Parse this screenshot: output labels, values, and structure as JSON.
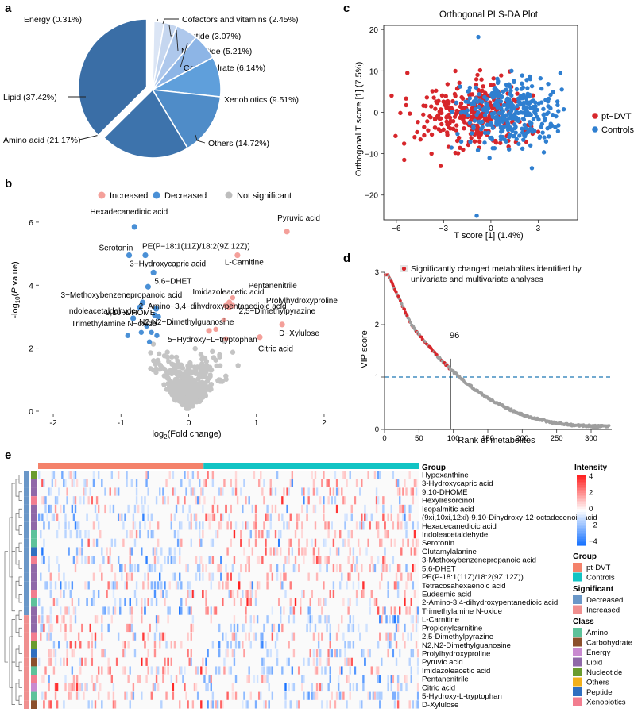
{
  "panel_labels": [
    "a",
    "b",
    "c",
    "d",
    "e"
  ],
  "chart_data": [
    {
      "panel": "a",
      "type": "pie",
      "slices": [
        {
          "label": "Energy (0.31%)",
          "value": 0.31,
          "color": "#eef2fa"
        },
        {
          "label": "Cofactors and vitamins (2.45%)",
          "value": 2.45,
          "color": "#dbe5f5"
        },
        {
          "label": "Peptide (3.07%)",
          "value": 3.07,
          "color": "#c5d6ef"
        },
        {
          "label": "Nucleotide (5.21%)",
          "value": 5.21,
          "color": "#aec8ec"
        },
        {
          "label": "Carbohydrate (6.14%)",
          "value": 6.14,
          "color": "#8db5e6"
        },
        {
          "label": "Xenobiotics (9.51%)",
          "value": 9.51,
          "color": "#5f9fdb"
        },
        {
          "label": "Others (14.72%)",
          "value": 14.72,
          "color": "#4f8cc8"
        },
        {
          "label": "Amino acid (21.17%)",
          "value": 21.17,
          "color": "#3d73ac"
        },
        {
          "label": "Lipid (37.42%)",
          "value": 37.42,
          "color": "#3a6ea6"
        }
      ]
    },
    {
      "panel": "b",
      "type": "scatter",
      "xlabel": "log2(Fold change)",
      "ylabel": "-log10(P value)",
      "xlim": [
        -2.2,
        2.2
      ],
      "ylim": [
        0,
        6.3
      ],
      "xticks": [
        "-2",
        "-1",
        "0",
        "1",
        "2"
      ],
      "yticks": [
        "0",
        "2",
        "4",
        "6"
      ],
      "legend": [
        {
          "label": "Increased",
          "color": "#f4a09a"
        },
        {
          "label": "Decreased",
          "color": "#4a90d6"
        },
        {
          "label": "Not significant",
          "color": "#bdbdbd"
        }
      ],
      "labeled_points": [
        {
          "label": "Hexadecanedioic acid",
          "x": -0.8,
          "y": 5.85,
          "group": "Decreased"
        },
        {
          "label": "Pyruvic acid",
          "x": 1.45,
          "y": 5.7,
          "group": "Increased"
        },
        {
          "label": "Serotonin",
          "x": -0.88,
          "y": 4.95,
          "group": "Decreased"
        },
        {
          "label": "PE(P−18:1(11Z)/18:2(9Z,12Z))",
          "x": -0.64,
          "y": 4.95,
          "group": "Decreased"
        },
        {
          "label": "L-Carnitine",
          "x": 0.72,
          "y": 4.95,
          "group": "Increased"
        },
        {
          "label": "3−Hydroxycapric acid",
          "x": -0.52,
          "y": 4.4,
          "group": "Decreased"
        },
        {
          "label": "5,6−DHET",
          "x": -0.6,
          "y": 3.95,
          "group": "Decreased"
        },
        {
          "label": "3−Methoxybenzenepropanoic acid",
          "x": -0.68,
          "y": 3.45,
          "group": "Decreased"
        },
        {
          "label": "Imidazoleacetic acid",
          "x": 0.55,
          "y": 3.35,
          "group": "Increased"
        },
        {
          "label": "Pentanenitrile",
          "x": 0.6,
          "y": 3.45,
          "group": "Increased"
        },
        {
          "label": "Prolylhydroxyproline",
          "x": 0.65,
          "y": 3.35,
          "group": "Increased"
        },
        {
          "label": "Indoleacetaldehyde",
          "x": -0.72,
          "y": 3.3,
          "group": "Decreased"
        },
        {
          "label": "2−Amino−3,4−dihydroxypentanedioic acid",
          "x": -0.48,
          "y": 3.25,
          "group": "Decreased"
        },
        {
          "label": "2,5−Dimethylpyrazine",
          "x": 0.6,
          "y": 3.3,
          "group": "Increased"
        },
        {
          "label": "Trimethylamine N−oxide",
          "x": -0.82,
          "y": 2.95,
          "group": "Decreased"
        },
        {
          "label": "9,10−DHOME",
          "x": -0.5,
          "y": 3.05,
          "group": "Decreased"
        },
        {
          "label": "N2,N2−Dimethylguanosine",
          "x": -0.45,
          "y": 3.0,
          "group": "Decreased"
        },
        {
          "label": "D−Xylulose",
          "x": 1.38,
          "y": 2.75,
          "group": "Increased"
        },
        {
          "label": "5−Hydroxy−L−tryptophan",
          "x": 0.3,
          "y": 2.55,
          "group": "Increased"
        },
        {
          "label": "Citric acid",
          "x": 1.05,
          "y": 2.35,
          "group": "Increased"
        }
      ]
    },
    {
      "panel": "c",
      "type": "scatter",
      "title": "Orthogonal PLS-DA Plot",
      "xlabel": "T score [1] (1.4%)",
      "ylabel": "Orthogonal T score [1] (7.5%)",
      "xlim": [
        -6.8,
        5.5
      ],
      "ylim": [
        -26,
        21
      ],
      "xticks": [
        "−6",
        "−3",
        "0",
        "3"
      ],
      "yticks": [
        "−20",
        "−10",
        "0",
        "10",
        "20"
      ],
      "legend": [
        {
          "label": "pt−DVT",
          "color": "#d7262b"
        },
        {
          "label": "Controls",
          "color": "#2f7fd0"
        }
      ]
    },
    {
      "panel": "d",
      "type": "scatter",
      "xlabel": "Rank of metabolites",
      "ylabel": "VIP score",
      "xlim": [
        0,
        330
      ],
      "ylim": [
        0,
        3
      ],
      "xticks": [
        "0",
        "50",
        "100",
        "150",
        "200",
        "250",
        "300"
      ],
      "yticks": [
        "0",
        "1",
        "2",
        "3"
      ],
      "threshold": 1,
      "cutoff_rank": 96,
      "cutoff_label": "96",
      "legend_text_line1": "Significantly changed metabolites identified by",
      "legend_text_line2": "univariate and multivariate analyses"
    },
    {
      "panel": "e",
      "type": "heatmap",
      "group_title": "Group",
      "rows": [
        "Hypoxanthine",
        "3-Hydroxycapric acid",
        "9,10-DHOME",
        "Hexylresorcinol",
        "Isopalmitic acid",
        "(9xi,10xi,12xi)-9,10-Dihydroxy-12-octadecenoic acid",
        "Hexadecanedioic acid",
        "Indoleacetaldehyde",
        "Serotonin",
        "Glutamylalanine",
        "3-Methoxybenzenepropanoic acid",
        "5,6-DHET",
        "PE(P-18:1(11Z)/18:2(9Z,12Z))",
        "Tetracosahexaenoic acid",
        "Eudesmic acid",
        "2-Amino-3,4-dihydroxypentanedioic acid",
        "Trimethylamine N-oxide",
        "L-Carnitine",
        "Propionylcarnitine",
        "2,5-Dimethylpyrazine",
        "N2,N2-Dimethylguanosine",
        "Prolylhydroxyproline",
        "Pyruvic acid",
        "Imidazoleacetic acid",
        "Pentanenitrile",
        "Citric acid",
        "5-Hydroxy-L-tryptophan",
        "D-Xylulose"
      ],
      "row_significance": [
        "Decreased",
        "Decreased",
        "Decreased",
        "Decreased",
        "Decreased",
        "Decreased",
        "Decreased",
        "Decreased",
        "Decreased",
        "Decreased",
        "Decreased",
        "Decreased",
        "Decreased",
        "Decreased",
        "Decreased",
        "Decreased",
        "Decreased",
        "Increased",
        "Increased",
        "Increased",
        "Increased",
        "Increased",
        "Increased",
        "Increased",
        "Increased",
        "Increased",
        "Increased",
        "Increased"
      ],
      "row_class": [
        "Nucleotide",
        "Lipid",
        "Lipid",
        "Xenobiotics",
        "Lipid",
        "Lipid",
        "Lipid",
        "Amino",
        "Amino",
        "Peptide",
        "Xenobiotics",
        "Lipid",
        "Lipid",
        "Lipid",
        "Xenobiotics",
        "Amino",
        "Lipid",
        "Lipid",
        "Lipid",
        "Xenobiotics",
        "Nucleotide",
        "Peptide",
        "Carbohydrate",
        "Amino",
        "Xenobiotics",
        "Energy",
        "Amino",
        "Carbohydrate"
      ],
      "column_groups": [
        {
          "name": "pt-DVT",
          "count": 100
        },
        {
          "name": "Controls",
          "count": 130
        }
      ],
      "intensity_title": "Intensity",
      "intensity_ticks": [
        "4",
        "2",
        "0",
        "−2",
        "−4"
      ],
      "legends": {
        "group": {
          "title": "Group",
          "items": [
            {
              "label": "pt-DVT",
              "color": "#f4826b"
            },
            {
              "label": "Controls",
              "color": "#12c4c4"
            }
          ]
        },
        "significant": {
          "title": "Significant",
          "items": [
            {
              "label": "Decreased",
              "color": "#6a97c8"
            },
            {
              "label": "Increased",
              "color": "#f08f8f"
            }
          ]
        },
        "class": {
          "title": "Class",
          "items": [
            {
              "label": "Amino",
              "color": "#5dc29a"
            },
            {
              "label": "Carbohydrate",
              "color": "#8b4f2b"
            },
            {
              "label": "Energy",
              "color": "#c98ad0"
            },
            {
              "label": "Lipid",
              "color": "#8f68a8"
            },
            {
              "label": "Nucleotide",
              "color": "#6a9c2e"
            },
            {
              "label": "Others",
              "color": "#f2b01b"
            },
            {
              "label": "Peptide",
              "color": "#2f6fc0"
            },
            {
              "label": "Xenobiotics",
              "color": "#f27d8f"
            }
          ]
        }
      }
    }
  ]
}
